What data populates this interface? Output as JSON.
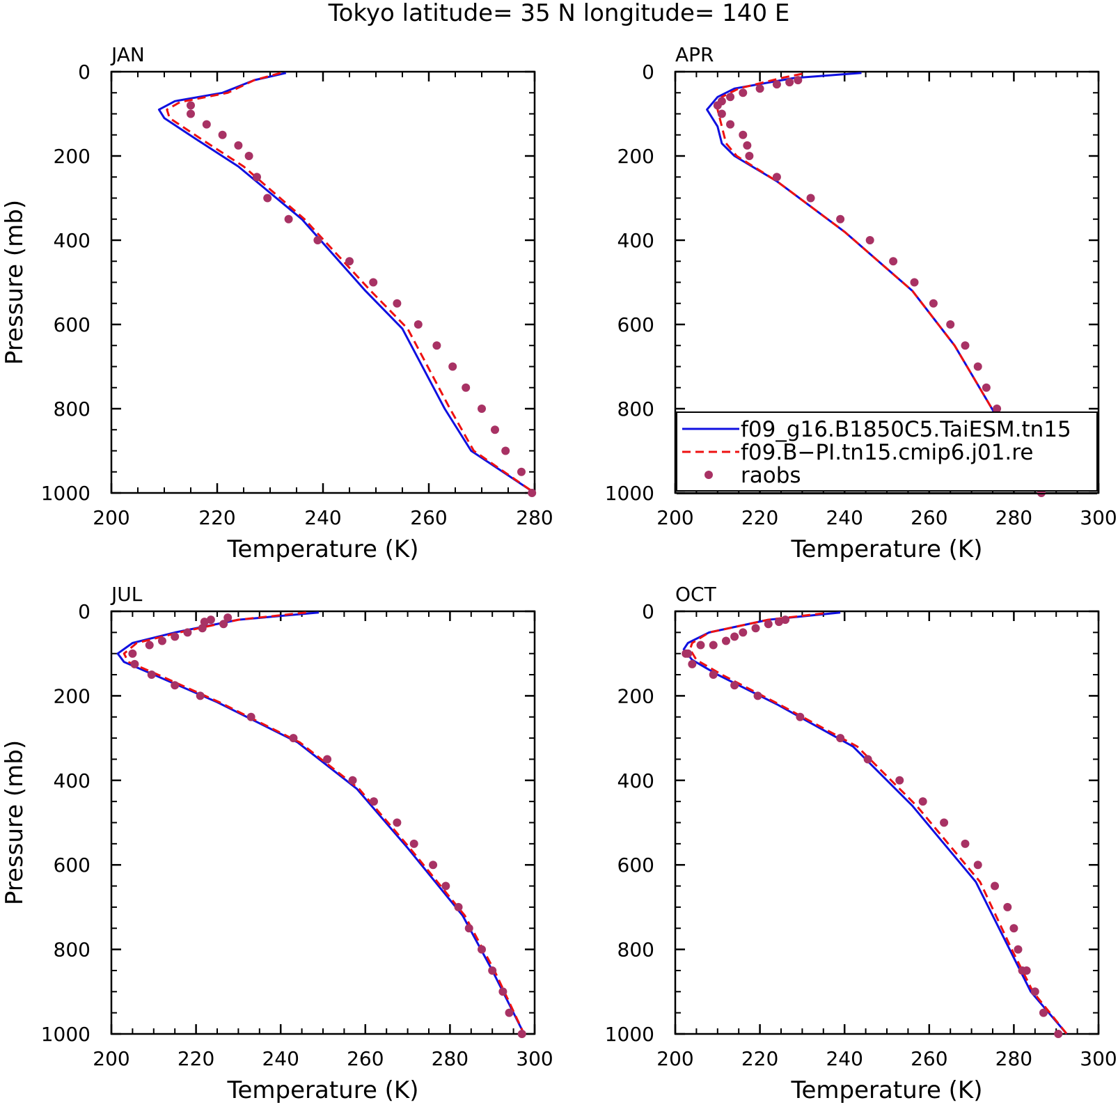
{
  "title": "Tokyo  latitude= 35 N longitude= 140 E",
  "xlabel": "Temperature (K)",
  "ylabel": "Pressure (mb)",
  "colors": {
    "model1": "#1010e0",
    "model2": "#ee1111",
    "obs": "#a83264"
  },
  "legend": {
    "entries": [
      {
        "label": "f09_g16.B1850C5.TaiESM.tn15",
        "style": "solid",
        "color": "#1010e0"
      },
      {
        "label": "f09.B−PI.tn15.cmip6.j01.re",
        "style": "dashed",
        "color": "#ee1111"
      },
      {
        "label": "raobs",
        "style": "marker",
        "color": "#a83264"
      }
    ]
  },
  "chart_data": [
    {
      "type": "line",
      "panel_label": "JAN",
      "xlim": [
        200,
        280
      ],
      "ylim": [
        1000,
        0
      ],
      "xticks": [
        200,
        220,
        240,
        260,
        280
      ],
      "yticks": [
        0,
        200,
        400,
        600,
        800,
        1000
      ],
      "series": [
        {
          "name": "f09_g16.B1850C5.TaiESM.tn15",
          "style": "solid",
          "x": [
            233,
            227,
            221,
            212,
            209,
            210,
            216,
            224,
            236,
            248,
            255,
            263,
            268,
            280
          ],
          "y": [
            3,
            20,
            50,
            70,
            90,
            110,
            160,
            225,
            350,
            520,
            610,
            800,
            900,
            1000
          ]
        },
        {
          "name": "f09.B−PI.tn15.cmip6.j01.re",
          "style": "dashed",
          "x": [
            232,
            227,
            222,
            213,
            210.5,
            211,
            217,
            225,
            236.5,
            249,
            256,
            264,
            268.5,
            280
          ],
          "y": [
            3,
            20,
            50,
            72,
            90,
            110,
            160,
            225,
            350,
            520,
            610,
            800,
            900,
            1000
          ]
        },
        {
          "name": "raobs",
          "style": "marker",
          "x": [
            215,
            215,
            218,
            221,
            224,
            226,
            227.5,
            229.5,
            233.5,
            239,
            245,
            249.5,
            254,
            258,
            261.5,
            264.5,
            267,
            270,
            272.5,
            274.5,
            277.5,
            279.5
          ],
          "y": [
            80,
            100,
            125,
            150,
            175,
            200,
            250,
            300,
            350,
            400,
            450,
            500,
            550,
            600,
            650,
            700,
            750,
            800,
            850,
            900,
            950,
            1000
          ]
        }
      ]
    },
    {
      "type": "line",
      "panel_label": "APR",
      "xlim": [
        200,
        300
      ],
      "ylim": [
        1000,
        0
      ],
      "xticks": [
        200,
        220,
        240,
        260,
        280,
        300
      ],
      "yticks": [
        0,
        200,
        400,
        600,
        800,
        1000
      ],
      "series": [
        {
          "name": "f09_g16.B1850C5.TaiESM.tn15",
          "style": "solid",
          "x": [
            244,
            228,
            214,
            210,
            207.5,
            210,
            211,
            214,
            224,
            240,
            256,
            266,
            276,
            287
          ],
          "y": [
            3,
            15,
            40,
            60,
            90,
            130,
            170,
            200,
            260,
            380,
            520,
            650,
            820,
            1000
          ]
        },
        {
          "name": "f09.B−PI.tn15.cmip6.j01.re",
          "style": "dashed",
          "x": [
            230,
            225,
            215,
            211,
            210,
            211,
            212,
            214.5,
            224,
            240,
            256,
            266,
            276,
            287
          ],
          "y": [
            5,
            15,
            40,
            60,
            90,
            130,
            170,
            200,
            260,
            380,
            520,
            650,
            820,
            1000
          ]
        },
        {
          "name": "raobs",
          "style": "marker",
          "x": [
            229,
            227,
            224,
            220,
            216,
            213,
            211,
            210,
            211,
            213,
            216,
            217,
            217.5,
            224,
            232,
            239,
            246,
            251.5,
            256.5,
            261,
            265,
            268.5,
            271.5,
            273.5,
            276,
            281,
            283.5,
            286.5
          ],
          "y": [
            20,
            25,
            30,
            40,
            50,
            60,
            70,
            80,
            100,
            125,
            150,
            175,
            200,
            250,
            300,
            350,
            400,
            450,
            500,
            550,
            600,
            650,
            700,
            750,
            800,
            900,
            950,
            1000
          ]
        }
      ]
    },
    {
      "type": "line",
      "panel_label": "JUL",
      "xlim": [
        200,
        300
      ],
      "ylim": [
        1000,
        0
      ],
      "xticks": [
        200,
        220,
        240,
        260,
        280,
        300
      ],
      "yticks": [
        0,
        200,
        400,
        600,
        800,
        1000
      ],
      "series": [
        {
          "name": "f09_g16.B1850C5.TaiESM.tn15",
          "style": "solid",
          "x": [
            249,
            230,
            215,
            205,
            201.5,
            203,
            210,
            225,
            244,
            258,
            270,
            283,
            290,
            297.5
          ],
          "y": [
            3,
            20,
            50,
            75,
            100,
            120,
            150,
            215,
            310,
            420,
            560,
            720,
            850,
            1000
          ]
        },
        {
          "name": "f09.B−PI.tn15.cmip6.j01.re",
          "style": "dashed",
          "x": [
            246,
            230,
            216,
            206,
            203,
            204,
            211,
            225.5,
            244.5,
            258.5,
            270.5,
            283.5,
            290.5,
            297.5
          ],
          "y": [
            3,
            20,
            50,
            75,
            100,
            120,
            150,
            215,
            310,
            420,
            560,
            720,
            850,
            1000
          ]
        },
        {
          "name": "raobs",
          "style": "marker",
          "x": [
            227.5,
            226.5,
            223.5,
            222,
            221.5,
            218,
            215,
            212,
            209,
            205,
            205.5,
            209.5,
            215,
            221,
            233,
            243,
            251,
            257,
            262,
            267.5,
            271.5,
            276,
            279,
            282,
            284.5,
            287.5,
            290,
            292.5,
            294,
            297
          ],
          "y": [
            15,
            30,
            20,
            25,
            40,
            50,
            60,
            70,
            80,
            100,
            125,
            150,
            175,
            200,
            250,
            300,
            350,
            400,
            450,
            500,
            550,
            600,
            650,
            700,
            750,
            800,
            850,
            900,
            950,
            1000
          ]
        }
      ]
    },
    {
      "type": "line",
      "panel_label": "OCT",
      "xlim": [
        200,
        300
      ],
      "ylim": [
        1000,
        0
      ],
      "xticks": [
        200,
        220,
        240,
        260,
        280,
        300
      ],
      "yticks": [
        0,
        200,
        400,
        600,
        800,
        1000
      ],
      "series": [
        {
          "name": "f09_g16.B1850C5.TaiESM.tn15",
          "style": "solid",
          "x": [
            239,
            222,
            208,
            203,
            202,
            204,
            210,
            224,
            242,
            256,
            271,
            279,
            284,
            292.5
          ],
          "y": [
            3,
            20,
            50,
            75,
            90,
            115,
            150,
            220,
            320,
            460,
            640,
            800,
            900,
            1000
          ]
        },
        {
          "name": "f09.B−PI.tn15.cmip6.j01.re",
          "style": "dashed",
          "x": [
            235,
            222,
            208,
            204,
            203.5,
            205,
            211,
            224.5,
            243,
            257,
            272,
            279.5,
            284.5,
            292.5
          ],
          "y": [
            5,
            20,
            50,
            75,
            90,
            115,
            150,
            220,
            320,
            460,
            640,
            800,
            900,
            1000
          ]
        },
        {
          "name": "raobs",
          "style": "marker",
          "x": [
            226,
            224.5,
            222,
            219,
            216,
            214,
            212,
            209,
            206,
            203,
            202.5,
            204,
            209,
            214,
            219.5,
            229.5,
            239,
            245.5,
            253,
            258.5,
            263.5,
            268.5,
            271.5,
            275.5,
            278.5,
            280,
            281,
            282,
            283,
            285,
            287,
            290.5
          ],
          "y": [
            20,
            25,
            30,
            40,
            50,
            60,
            70,
            80,
            80,
            100,
            100,
            125,
            150,
            175,
            200,
            250,
            300,
            350,
            400,
            450,
            500,
            550,
            600,
            650,
            700,
            750,
            800,
            850,
            850,
            900,
            950,
            1000
          ]
        }
      ]
    }
  ]
}
